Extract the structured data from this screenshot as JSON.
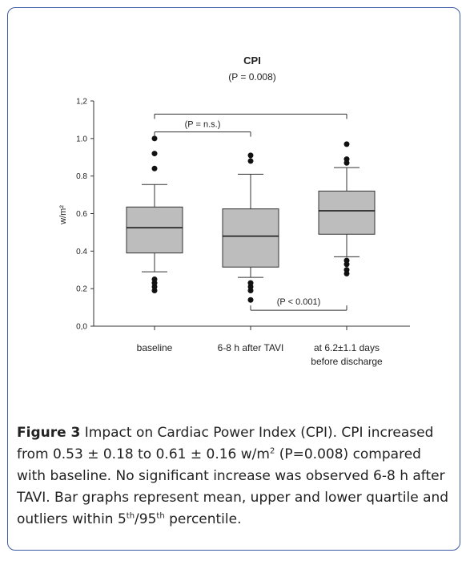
{
  "chart_data": {
    "type": "box",
    "title": "CPI",
    "subtitle": "(P = 0.008)",
    "ylabel": "w/m²",
    "xlabel": "",
    "ylim": [
      0.0,
      1.2
    ],
    "y_ticks": [
      "0,0",
      "0.2",
      "0.4",
      "0.6",
      "0.8",
      "1.0",
      "1,2"
    ],
    "y_tick_values": [
      0.0,
      0.2,
      0.4,
      0.6,
      0.8,
      1.0,
      1.2
    ],
    "categories": [
      "baseline",
      "6-8 h after TAVI",
      "at 6.2±1.1 days before discharge"
    ],
    "category_lines": [
      [
        "baseline"
      ],
      [
        "6-8 h after TAVI"
      ],
      [
        "at 6.2±1.1 days",
        "before discharge"
      ]
    ],
    "boxes": [
      {
        "whisker_low": 0.29,
        "q1": 0.39,
        "median": 0.525,
        "q3": 0.635,
        "whisker_high": 0.755,
        "outliers": [
          0.19,
          0.21,
          0.23,
          0.25,
          0.84,
          0.92,
          1.0
        ]
      },
      {
        "whisker_low": 0.26,
        "q1": 0.315,
        "median": 0.48,
        "q3": 0.625,
        "whisker_high": 0.81,
        "outliers": [
          0.14,
          0.19,
          0.21,
          0.23,
          0.88,
          0.91
        ]
      },
      {
        "whisker_low": 0.37,
        "q1": 0.49,
        "median": 0.615,
        "q3": 0.72,
        "whisker_high": 0.845,
        "outliers": [
          0.28,
          0.3,
          0.33,
          0.35,
          0.87,
          0.89,
          0.97
        ]
      }
    ],
    "comparisons": [
      {
        "from": 0,
        "to": 2,
        "y": 1.13,
        "label": "",
        "tick": "down"
      },
      {
        "from": 0,
        "to": 1,
        "y": 1.035,
        "label": "(P = n.s.)",
        "tick": "down"
      },
      {
        "from": 1,
        "to": 2,
        "y": 0.085,
        "label": "(P < 0.001)",
        "tick": "up"
      }
    ],
    "colors": {
      "box_fill": "#bdbdbd",
      "stroke": "#333333",
      "points": "#111111"
    }
  },
  "caption": {
    "label": "Figure 3",
    "text_1": " Impact on Cardiac Power Index (CPI). CPI increased from 0.53 ± 0.18 to 0.61 ± 0.16 w/m",
    "sup_1": "2",
    "text_2": " (P=0.008) compared with baseline. No significant increase was observed 6-8 h after TAVI. Bar graphs represent mean, upper and lower quartile and outliers within 5",
    "sup_2": "th",
    "text_3": "/95",
    "sup_3": "th",
    "text_4": " percentile."
  },
  "frame_color": "#3b5aa6"
}
